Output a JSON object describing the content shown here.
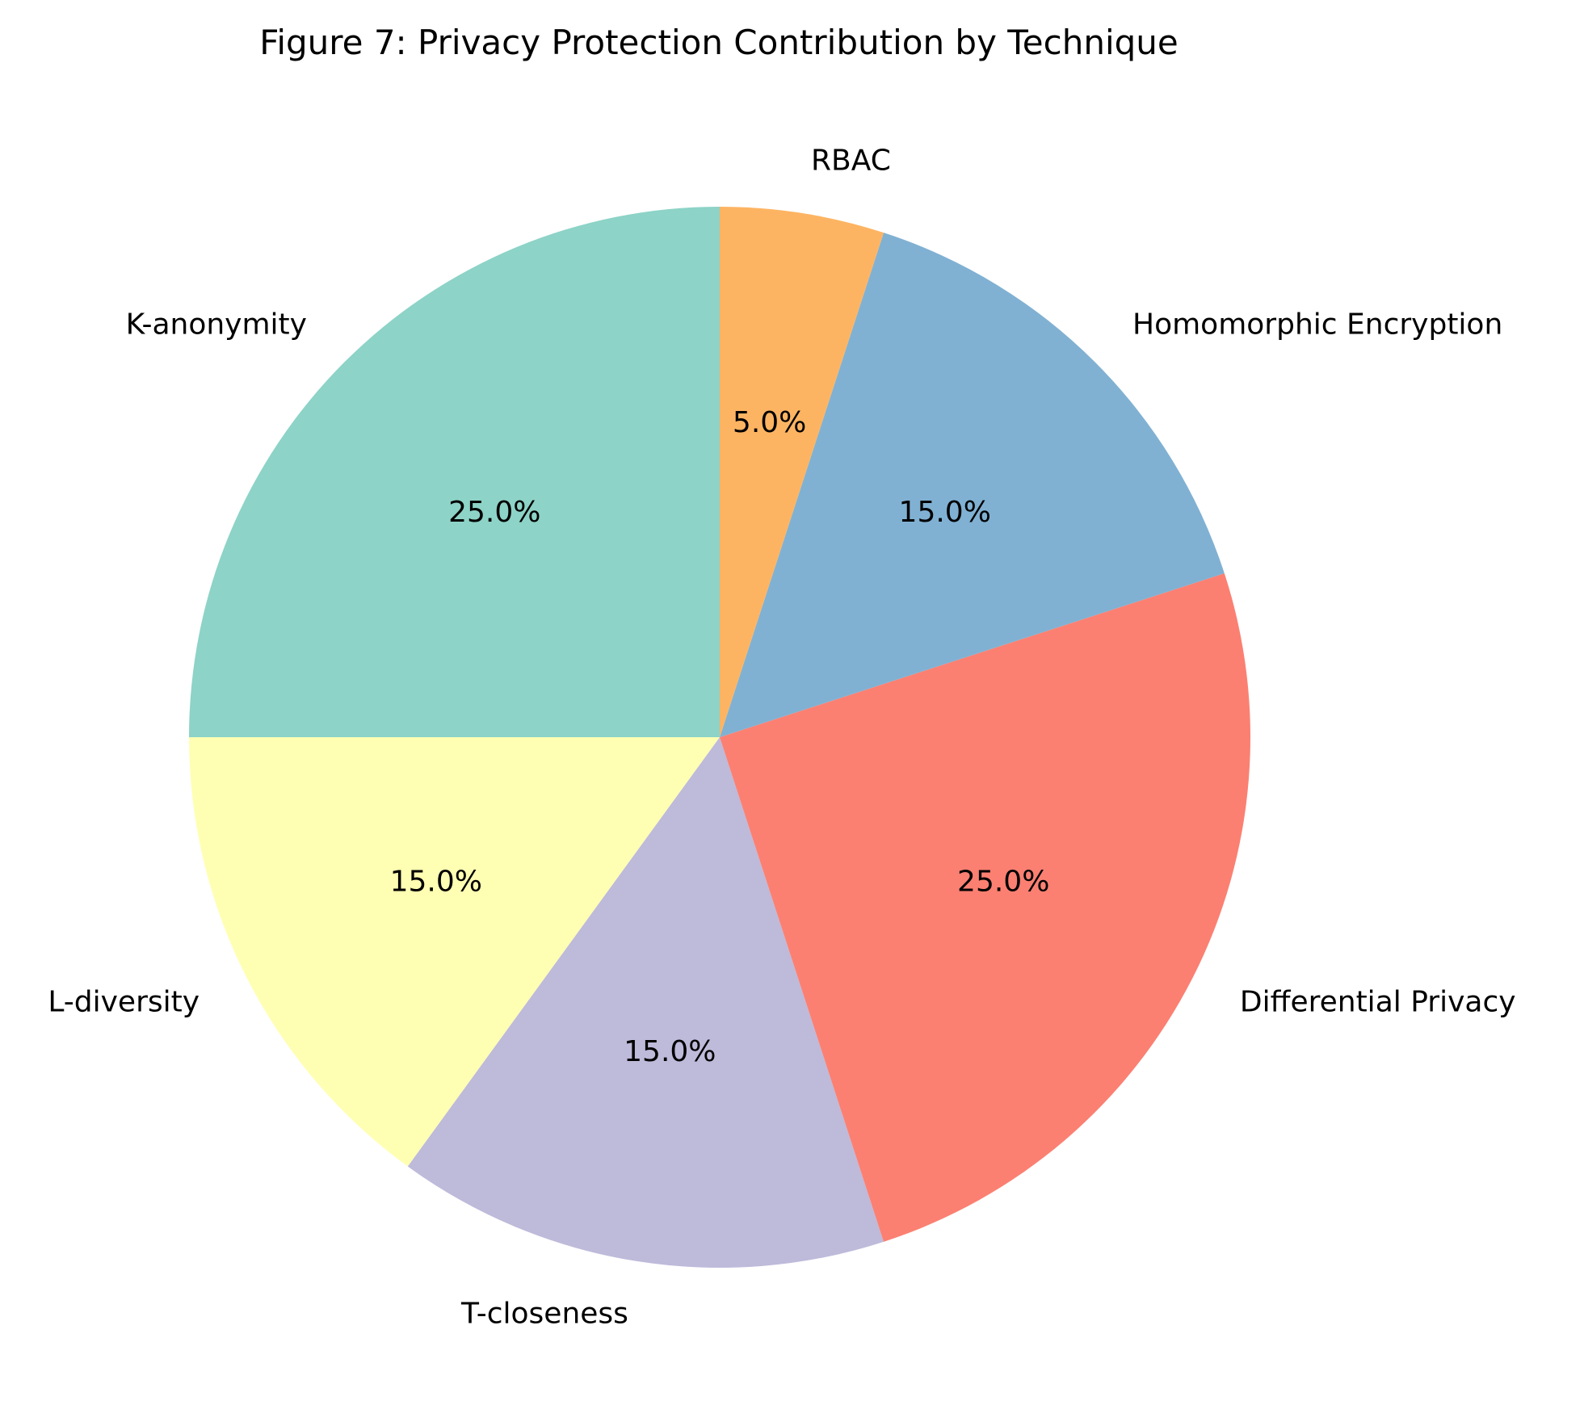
{
  "chart_data": {
    "type": "pie",
    "title": "Figure 7: Privacy Protection Contribution by Technique",
    "start_angle_deg": 90,
    "direction": "counterclockwise",
    "slices": [
      {
        "label": "K-anonymity",
        "value": 25,
        "pct_text": "25.0%",
        "color": "#8dd3c7"
      },
      {
        "label": "L-diversity",
        "value": 15,
        "pct_text": "15.0%",
        "color": "#ffffb3"
      },
      {
        "label": "T-closeness",
        "value": 15,
        "pct_text": "15.0%",
        "color": "#bebada"
      },
      {
        "label": "Differential Privacy",
        "value": 25,
        "pct_text": "25.0%",
        "color": "#fb8072"
      },
      {
        "label": "Homomorphic Encryption",
        "value": 15,
        "pct_text": "15.0%",
        "color": "#80b1d3"
      },
      {
        "label": "RBAC",
        "value": 5,
        "pct_text": "5.0%",
        "color": "#fdb462"
      }
    ]
  }
}
